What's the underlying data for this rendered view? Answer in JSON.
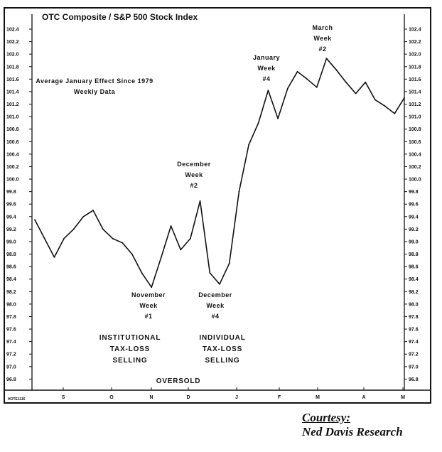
{
  "chart_data": {
    "type": "line",
    "title": "OTC Composite / S&P 500 Stock Index",
    "subtitle_lines": [
      "Average January Effect Since 1979",
      "Weekly Data"
    ],
    "y_ticks": [
      96.8,
      97.0,
      97.2,
      97.4,
      97.6,
      97.8,
      98.0,
      98.2,
      98.4,
      98.6,
      98.8,
      99.0,
      99.2,
      99.4,
      99.6,
      99.8,
      100.0,
      100.2,
      100.4,
      100.6,
      100.8,
      101.0,
      101.2,
      101.4,
      101.6,
      101.8,
      102.0,
      102.2,
      102.4
    ],
    "y_tick_labels": [
      "96.8",
      "97.0",
      "97.2",
      "97.4",
      "97.6",
      "97.8",
      "98.0",
      "98.2",
      "98.4",
      "98.6",
      "98.8",
      "99.0",
      "99.2",
      "99.4",
      "99.6",
      "99.8",
      "100.0",
      "100.2",
      "100.4",
      "100.6",
      "100.8",
      "101.0",
      "101.2",
      "101.4",
      "101.6",
      "101.8",
      "102.0",
      "102.2",
      "102.4"
    ],
    "ylim": [
      96.7,
      102.5
    ],
    "x_month_labels": [
      "S",
      "O",
      "N",
      "D",
      "J",
      "F",
      "M",
      "A",
      "M"
    ],
    "x_code_label": "HOTE1115",
    "grid": false,
    "series": [
      {
        "values": [
          99.35,
          99.05,
          98.75,
          99.05,
          99.2,
          99.4,
          99.5,
          99.2,
          99.05,
          98.98,
          98.8,
          98.5,
          98.27,
          98.75,
          99.25,
          98.87,
          99.05,
          99.65,
          98.5,
          98.32,
          98.65,
          99.8,
          100.55,
          100.9,
          101.42,
          100.97,
          101.45,
          101.72,
          101.6,
          101.47,
          101.93,
          101.75,
          101.55,
          101.37,
          101.55,
          101.27,
          101.17,
          101.05,
          101.3
        ]
      }
    ],
    "annotations": [
      {
        "lines": [
          "November",
          "Week",
          "#1"
        ]
      },
      {
        "lines": [
          "December",
          "Week",
          "#2"
        ]
      },
      {
        "lines": [
          "December",
          "Week",
          "#4"
        ]
      },
      {
        "lines": [
          "January",
          "Week",
          "#4"
        ]
      },
      {
        "lines": [
          "March",
          "Week",
          "#2"
        ]
      },
      {
        "lines": [
          "INSTITUTIONAL",
          "TAX-LOSS",
          "SELLING"
        ]
      },
      {
        "lines": [
          "INDIVIDUAL",
          "TAX-LOSS",
          "SELLING"
        ]
      },
      {
        "lines": [
          "OVERSOLD"
        ]
      }
    ]
  },
  "credit": {
    "line1": "Courtesy:",
    "line2": "Ned Davis Research"
  }
}
